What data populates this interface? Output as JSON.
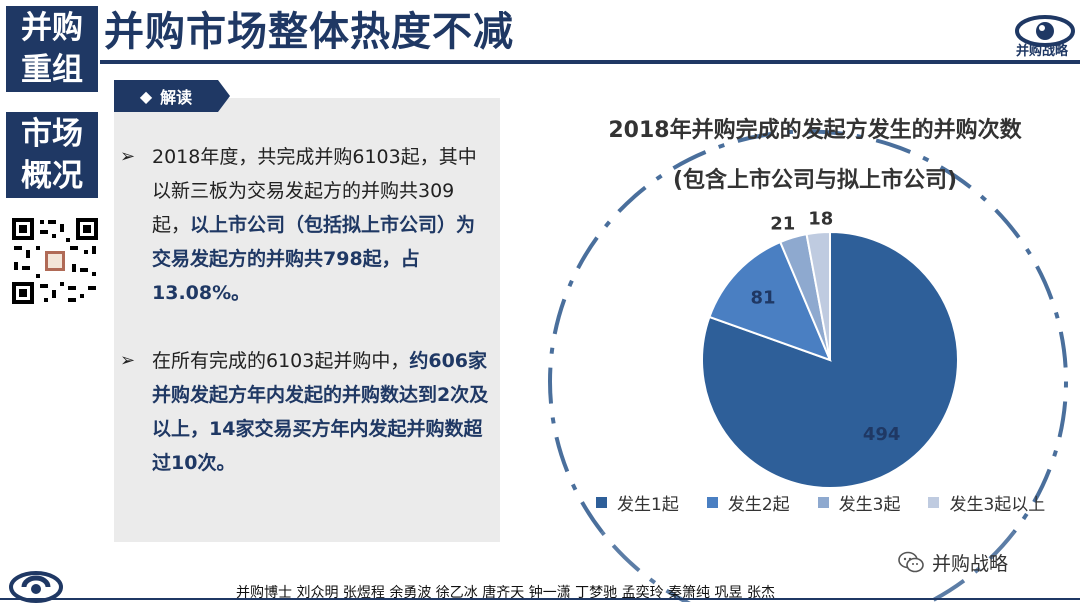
{
  "nav": {
    "tile1": [
      "并购",
      "重组"
    ],
    "tile2": [
      "市场",
      "概况"
    ]
  },
  "header": {
    "title": "并购市场整体热度不减",
    "logo_text": "并购战略"
  },
  "panel": {
    "tag": "解读",
    "bullets": [
      {
        "plain": "2018年度，共完成并购6103起，其中以新三板为交易发起方的并购共309起，",
        "bold": "以上市公司（包括拟上市公司）为交易发起方的并购共798起，占13.08%。"
      },
      {
        "plain": "在所有完成的6103起并购中，",
        "bold": "约606家并购发起方年内发起的并购数达到2次及以上，14家交易买方年内发起并购数超过10次。"
      }
    ]
  },
  "chart_data": {
    "type": "pie",
    "title": "2018年并购完成的发起方发生的并购次数",
    "subtitle": "(包含上市公司与拟上市公司)",
    "categories": [
      "发生1起",
      "发生2起",
      "发生3起",
      "发生3起以上"
    ],
    "values": [
      494,
      81,
      21,
      18
    ],
    "colors": [
      "#2e5f99",
      "#4a7fc2",
      "#8ea9cf",
      "#bfcbe0"
    ],
    "legend_position": "bottom"
  },
  "footer": {
    "authors": "并购博士 刘众明 张煜程 余勇波 徐乙冰 唐齐天 钟一潇 丁梦驰 孟奕玲 秦箫纯 巩昱 张杰",
    "wechat": "并购战略"
  }
}
